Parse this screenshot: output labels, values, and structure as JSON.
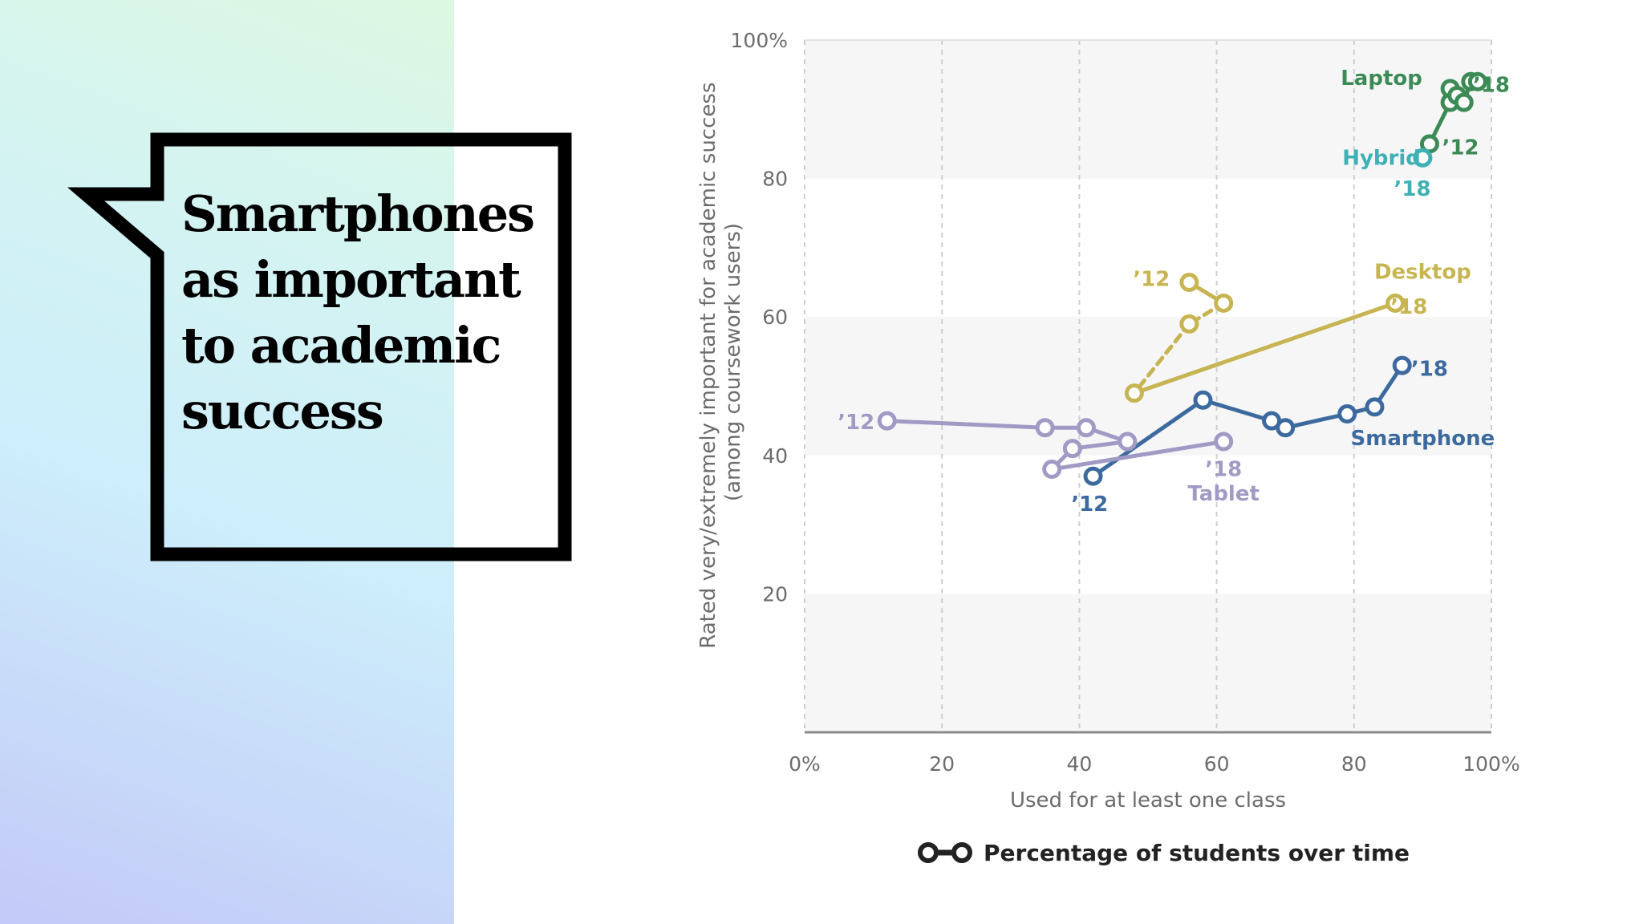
{
  "slide": {
    "title_lines": [
      "Smartphones",
      "as important",
      "to academic",
      "success"
    ]
  },
  "chart_data": {
    "type": "line",
    "title": "",
    "xlabel": "Used for at least one class",
    "ylabel_lines": [
      "Rated very/extremely important for academic success",
      "(among coursework users)"
    ],
    "xlim": [
      0,
      100
    ],
    "ylim": [
      0,
      100
    ],
    "x_ticks": [
      "0%",
      "20",
      "40",
      "60",
      "80",
      "100%"
    ],
    "y_ticks": [
      "20",
      "40",
      "60",
      "80",
      "100%"
    ],
    "grid": "vertical dashed, alternating horizontal bands",
    "legend": {
      "text": "Percentage of students over time",
      "placement": "bottom"
    },
    "series": [
      {
        "name": "Laptop",
        "color": "#3c8a55",
        "points": [
          [
            91,
            85
          ],
          [
            94,
            91
          ],
          [
            94,
            93
          ],
          [
            95,
            92
          ],
          [
            96,
            91
          ],
          [
            97,
            94
          ],
          [
            98,
            94
          ]
        ],
        "labels": [
          {
            "text": "’12",
            "x": 95.5,
            "y": 83.5
          },
          {
            "text": "’18",
            "x": 100,
            "y": 92.5
          }
        ],
        "name_pos": [
          84,
          93.5
        ]
      },
      {
        "name": "Hybrid",
        "color": "#3fb0b4",
        "points": [
          [
            90,
            83
          ]
        ],
        "labels": [
          {
            "text": "’18",
            "x": 88.5,
            "y": 77.5
          }
        ],
        "name_pos": [
          84,
          82
        ]
      },
      {
        "name": "Desktop",
        "color": "#c7b553",
        "points": [
          [
            56,
            65
          ],
          [
            61,
            62
          ],
          [
            56,
            59
          ],
          [
            48,
            49
          ],
          [
            86,
            62
          ]
        ],
        "dashed_segments": [
          1,
          2
        ],
        "labels": [
          {
            "text": "’12",
            "x": 50.5,
            "y": 64.5
          },
          {
            "text": "’18",
            "x": 88,
            "y": 60.5
          }
        ],
        "name_pos": [
          90,
          65.5
        ]
      },
      {
        "name": "Smartphone",
        "color": "#3d6a9e",
        "points": [
          [
            42,
            37
          ],
          [
            58,
            48
          ],
          [
            68,
            45
          ],
          [
            70,
            44
          ],
          [
            79,
            46
          ],
          [
            83,
            47
          ],
          [
            87,
            53
          ]
        ],
        "labels": [
          {
            "text": "’12",
            "x": 41.5,
            "y": 32
          },
          {
            "text": "’18",
            "x": 91,
            "y": 51.5
          }
        ],
        "name_pos": [
          90,
          41.5
        ]
      },
      {
        "name": "Tablet",
        "color": "#a09ac4",
        "points": [
          [
            12,
            45
          ],
          [
            35,
            44
          ],
          [
            41,
            44
          ],
          [
            47,
            42
          ],
          [
            39,
            41
          ],
          [
            36,
            38
          ],
          [
            61,
            42
          ]
        ],
        "labels": [
          {
            "text": "’12",
            "x": 7.5,
            "y": 43.8
          },
          {
            "text": "’18",
            "x": 61,
            "y": 37
          }
        ],
        "name_pos": [
          61,
          33.5
        ]
      }
    ]
  }
}
